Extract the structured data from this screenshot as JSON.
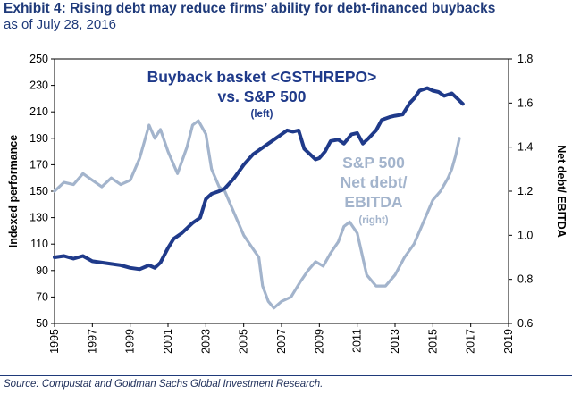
{
  "header": {
    "title": "Exhibit 4: Rising debt may reduce firms’ ability for debt-financed buybacks",
    "subtitle": "as of July 28, 2016"
  },
  "footer": {
    "source": "Source: Compustat and Goldman Sachs Global Investment Research."
  },
  "colors": {
    "buyback": "#1f3a8a",
    "netdebt": "#a3b4cc",
    "title": "#1f3a7a"
  },
  "chart_data": {
    "type": "line",
    "title": "Exhibit 4: Rising debt may reduce firms’ ability for debt-financed buybacks",
    "subtitle": "as of July 28, 2016",
    "xlabel": "",
    "ylabel_left": "Indexed performance",
    "ylabel_right": "Net debt/ EBITDA",
    "xlim": [
      1995,
      2019
    ],
    "ylim_left": [
      50,
      250
    ],
    "ylim_right": [
      0.6,
      1.8
    ],
    "x_ticks": [
      "1995",
      "1997",
      "1999",
      "2001",
      "2003",
      "2005",
      "2007",
      "2009",
      "2011",
      "2013",
      "2015",
      "2017",
      "2019"
    ],
    "y_ticks_left": [
      "50",
      "70",
      "90",
      "110",
      "130",
      "150",
      "170",
      "190",
      "210",
      "230",
      "250"
    ],
    "y_ticks_right": [
      "0.6",
      "0.8",
      "1.0",
      "1.2",
      "1.4",
      "1.6",
      "1.8"
    ],
    "grid": false,
    "legend": "inline annotations",
    "annotations": {
      "buyback": [
        "Buyback basket <GSTHREPO>",
        "vs. S&P 500",
        "(left)"
      ],
      "netdebt": [
        "S&P 500",
        "Net debt/",
        "EBITDA",
        "(right)"
      ]
    },
    "series": [
      {
        "name": "Buyback basket <GSTHREPO> vs. S&P 500",
        "axis": "left",
        "x": [
          1995,
          1995.5,
          1996,
          1996.5,
          1997,
          1997.5,
          1998,
          1998.5,
          1999,
          1999.5,
          2000,
          2000.3,
          2000.6,
          2001,
          2001.3,
          2001.7,
          2002,
          2002.3,
          2002.7,
          2003,
          2003.3,
          2003.7,
          2004,
          2004.5,
          2005,
          2005.5,
          2006,
          2006.5,
          2007,
          2007.3,
          2007.6,
          2007.9,
          2008.2,
          2008.5,
          2008.8,
          2009,
          2009.3,
          2009.6,
          2010,
          2010.3,
          2010.7,
          2011,
          2011.3,
          2011.6,
          2012,
          2012.3,
          2012.7,
          2013,
          2013.4,
          2013.8,
          2014,
          2014.3,
          2014.7,
          2015,
          2015.3,
          2015.6,
          2016,
          2016.3,
          2016.58
        ],
        "y": [
          100,
          101,
          99,
          101,
          97,
          96,
          95,
          94,
          92,
          91,
          94,
          92,
          96,
          107,
          114,
          118,
          122,
          126,
          130,
          144,
          148,
          150,
          152,
          160,
          170,
          178,
          183,
          188,
          193,
          196,
          195,
          196,
          182,
          178,
          174,
          175,
          180,
          188,
          189,
          186,
          193,
          194,
          186,
          190,
          196,
          204,
          206,
          207,
          208,
          217,
          220,
          226,
          228,
          226,
          225,
          222,
          224,
          220,
          216
        ]
      },
      {
        "name": "S&P 500 Net debt/ EBITDA",
        "axis": "right",
        "x": [
          1995,
          1995.5,
          1996,
          1996.5,
          1997,
          1997.5,
          1998,
          1998.5,
          1999,
          1999.5,
          2000,
          2000.3,
          2000.6,
          2001,
          2001.5,
          2002,
          2002.3,
          2002.6,
          2003,
          2003.3,
          2003.7,
          2004,
          2004.5,
          2005,
          2005.4,
          2005.8,
          2006,
          2006.3,
          2006.6,
          2007,
          2007.5,
          2008,
          2008.4,
          2008.8,
          2009.2,
          2009.6,
          2010,
          2010.3,
          2010.6,
          2011,
          2011.5,
          2012,
          2012.5,
          2013,
          2013.5,
          2014,
          2014.5,
          2015,
          2015.4,
          2015.8,
          2016,
          2016.2,
          2016.4
        ],
        "y": [
          1.2,
          1.24,
          1.23,
          1.28,
          1.25,
          1.22,
          1.26,
          1.23,
          1.25,
          1.35,
          1.5,
          1.44,
          1.48,
          1.38,
          1.28,
          1.4,
          1.5,
          1.52,
          1.46,
          1.3,
          1.22,
          1.2,
          1.1,
          1.0,
          0.95,
          0.9,
          0.77,
          0.7,
          0.67,
          0.7,
          0.72,
          0.79,
          0.84,
          0.88,
          0.86,
          0.92,
          0.97,
          1.04,
          1.06,
          1.01,
          0.82,
          0.77,
          0.77,
          0.82,
          0.9,
          0.96,
          1.06,
          1.16,
          1.2,
          1.26,
          1.3,
          1.36,
          1.44
        ]
      }
    ]
  }
}
